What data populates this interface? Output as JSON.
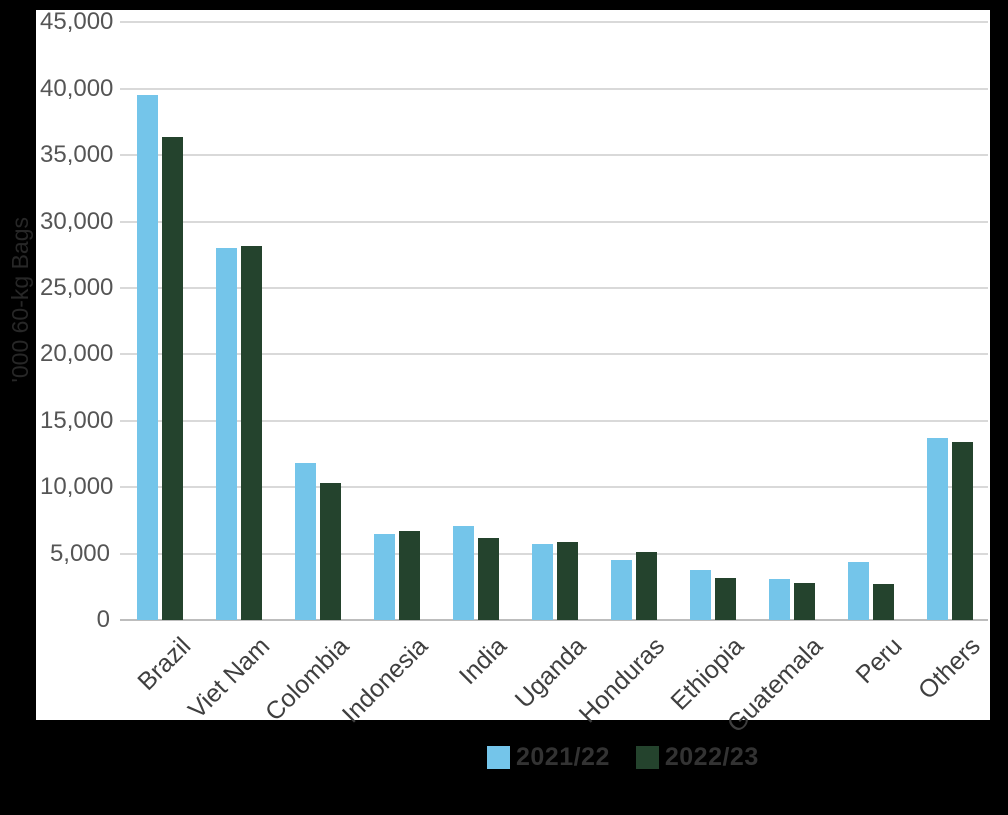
{
  "chart_data": {
    "type": "bar",
    "title": "",
    "xlabel": "",
    "ylabel": "'000 60-kg Bags",
    "categories": [
      "Brazil",
      "Viet Nam",
      "Colombia",
      "Indonesia",
      "India",
      "Uganda",
      "Honduras",
      "Ethiopia",
      "Guatemala",
      "Peru",
      "Others"
    ],
    "series": [
      {
        "name": "2021/22",
        "color": "#74C5EA",
        "values": [
          39500,
          28000,
          11800,
          6500,
          7100,
          5700,
          4500,
          3800,
          3100,
          4400,
          13700
        ]
      },
      {
        "name": "2022/23",
        "color": "#24432D",
        "values": [
          36400,
          28200,
          10300,
          6700,
          6200,
          5900,
          5100,
          3200,
          2800,
          2700,
          13400
        ]
      }
    ],
    "ylim": [
      0,
      45000
    ],
    "ytick_step": 5000,
    "ytick_labels": [
      "0",
      "5,000",
      "10,000",
      "15,000",
      "20,000",
      "25,000",
      "30,000",
      "35,000",
      "40,000",
      "45,000"
    ],
    "grid": "on",
    "legend_position": "bottom"
  },
  "colors": {
    "background": "#000000",
    "plot_background": "#FFFFFF",
    "gridline": "#D9D9D9",
    "axis_line": "#BDBDBD",
    "tick_label": "#555555",
    "category_label": "#3F3F3F",
    "legend_text": "#333333",
    "series_2021_22": "#74C5EA",
    "series_2022_23": "#24432D"
  }
}
